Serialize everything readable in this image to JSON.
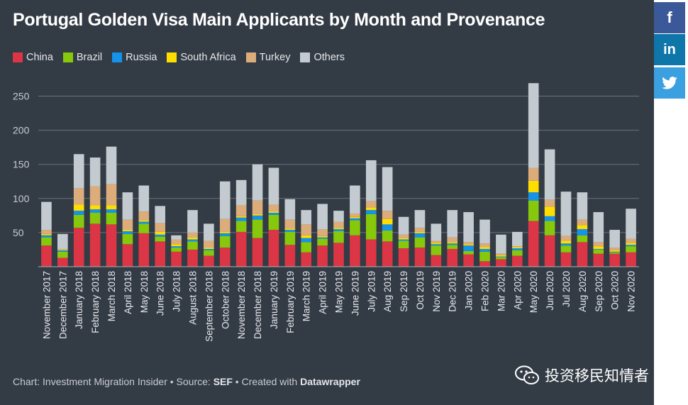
{
  "title": "Portugal Golden Visa Main Applicants by Month and Provenance",
  "legend": [
    {
      "name": "China",
      "color": "#dc3545"
    },
    {
      "name": "Brazil",
      "color": "#86c80c"
    },
    {
      "name": "Russia",
      "color": "#1592ea"
    },
    {
      "name": "South Africa",
      "color": "#fede00"
    },
    {
      "name": "Turkey",
      "color": "#dcac7a"
    },
    {
      "name": "Others",
      "color": "#c3cbd0"
    }
  ],
  "footer": {
    "prefix": "Chart: Investment Migration Insider • Source: ",
    "source": "SEF",
    "middle": " • Created with ",
    "tool": "Datawrapper"
  },
  "share": {
    "facebook": "f",
    "linkedin": "in",
    "twitter": "🐦"
  },
  "watermark": "投资移民知情者",
  "chart_data": {
    "type": "bar",
    "stacked": true,
    "title": "Portugal Golden Visa Main Applicants by Month and Provenance",
    "ylim": [
      0,
      270
    ],
    "yticks": [
      50,
      100,
      150,
      200,
      250
    ],
    "categories": [
      "November 2017",
      "December 2017",
      "January 2018",
      "February 2018",
      "March 2018",
      "April 2018",
      "May 2018",
      "June 2018",
      "July 2018",
      "August 2018",
      "September 2018",
      "October 2018",
      "November 2018",
      "December 2018",
      "January 2019",
      "February 2019",
      "March 2019",
      "April 2019",
      "May 2019",
      "June 2019",
      "July 2019",
      "Aug 2019",
      "Sep 2019",
      "Oct 2019",
      "Nov 2019",
      "Dec 2019",
      "Jan 2020",
      "Feb 2020",
      "Mar 2020",
      "Apr 2020",
      "May 2020",
      "Jun 2020",
      "Jul 2020",
      "Aug 2020",
      "Sep 2020",
      "Oct 2020",
      "Nov 2020"
    ],
    "series": [
      {
        "name": "China",
        "values": [
          31,
          13,
          57,
          63,
          62,
          33,
          49,
          37,
          22,
          25,
          16,
          28,
          51,
          42,
          54,
          32,
          21,
          31,
          35,
          46,
          40,
          37,
          27,
          28,
          17,
          26,
          18,
          8,
          11,
          16,
          67,
          46,
          21,
          36,
          19,
          19,
          21
        ]
      },
      {
        "name": "Brazil",
        "values": [
          12,
          9,
          19,
          16,
          17,
          15,
          14,
          7,
          6,
          12,
          8,
          17,
          16,
          27,
          22,
          19,
          15,
          10,
          17,
          22,
          37,
          16,
          11,
          15,
          14,
          6,
          5,
          14,
          3,
          8,
          30,
          21,
          10,
          10,
          6,
          2,
          9
        ]
      },
      {
        "name": "Russia",
        "values": [
          3,
          2,
          6,
          5,
          5,
          4,
          3,
          3,
          2,
          3,
          2,
          4,
          5,
          6,
          3,
          3,
          6,
          2,
          3,
          3,
          6,
          9,
          2,
          6,
          2,
          2,
          8,
          4,
          1,
          3,
          12,
          7,
          3,
          9,
          1,
          1,
          2
        ]
      },
      {
        "name": "South Africa",
        "values": [
          2,
          1,
          9,
          6,
          6,
          2,
          2,
          4,
          3,
          3,
          2,
          2,
          2,
          2,
          2,
          2,
          4,
          2,
          2,
          2,
          4,
          8,
          2,
          2,
          2,
          2,
          2,
          3,
          2,
          2,
          17,
          14,
          4,
          6,
          4,
          2,
          3
        ]
      },
      {
        "name": "Turkey",
        "values": [
          6,
          1,
          24,
          28,
          31,
          15,
          13,
          13,
          7,
          7,
          10,
          19,
          16,
          20,
          10,
          13,
          16,
          10,
          9,
          5,
          9,
          12,
          5,
          6,
          3,
          7,
          3,
          5,
          2,
          1,
          19,
          10,
          7,
          8,
          6,
          4,
          6
        ]
      },
      {
        "name": "Others",
        "values": [
          41,
          22,
          50,
          42,
          55,
          40,
          38,
          25,
          6,
          33,
          25,
          55,
          37,
          53,
          54,
          30,
          21,
          37,
          16,
          41,
          60,
          64,
          26,
          26,
          25,
          40,
          44,
          35,
          28,
          21,
          124,
          74,
          65,
          40,
          44,
          26,
          44
        ]
      }
    ]
  }
}
